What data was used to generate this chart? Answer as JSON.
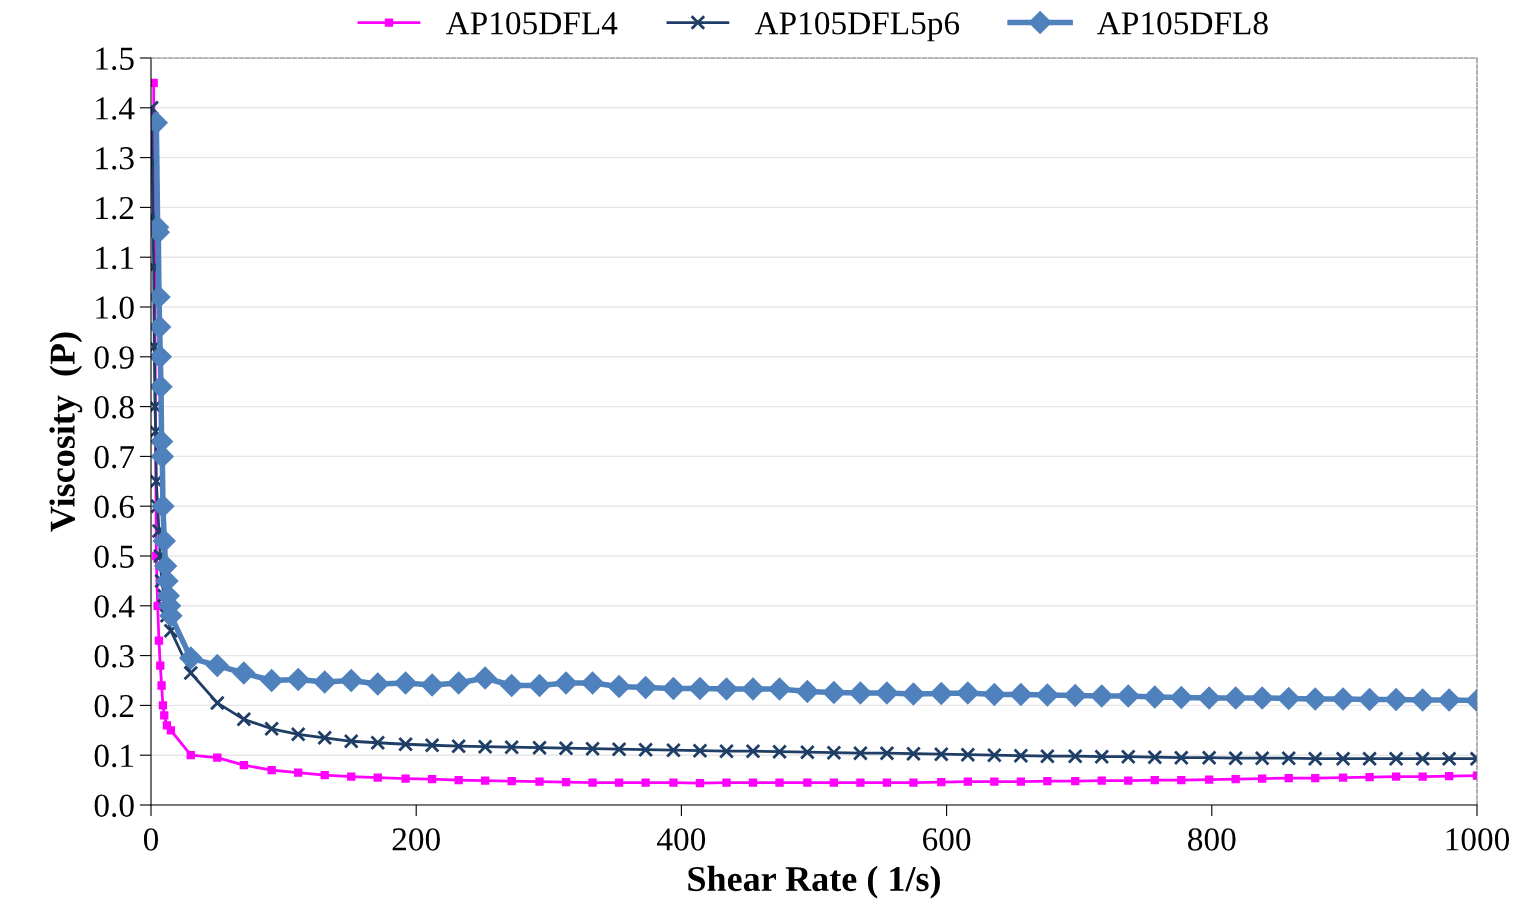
{
  "chart_data": {
    "type": "line",
    "xlabel": "Shear Rate ( 1/s)",
    "ylabel": "Viscosity  (P)",
    "xlim": [
      0,
      1000
    ],
    "xticks": [
      0,
      200,
      400,
      600,
      800,
      1000
    ],
    "ylim": [
      0,
      1.5
    ],
    "yticks": [
      {
        "value": 0,
        "label": "0.0"
      },
      0.1,
      0.2,
      0.3,
      0.4,
      0.5,
      0.6,
      0.7,
      0.8,
      0.9,
      {
        "value": 1,
        "label": "1.0"
      },
      1.1,
      1.2,
      1.3,
      1.4,
      1.5
    ],
    "grid": "y",
    "legend": "top",
    "series": [
      {
        "name": "AP105DFL4",
        "color": "#ff00ff",
        "marker": "square",
        "x": [
          2,
          4,
          5,
          6,
          7,
          8,
          9,
          10,
          12,
          15,
          30,
          50,
          70,
          91,
          111,
          131,
          151,
          171,
          192,
          212,
          232,
          252,
          272,
          293,
          313,
          333,
          353,
          373,
          394,
          414,
          434,
          454,
          474,
          495,
          515,
          535,
          555,
          575,
          596,
          616,
          636,
          656,
          676,
          697,
          717,
          737,
          757,
          777,
          798,
          818,
          838,
          858,
          878,
          899,
          919,
          939,
          959,
          979,
          1000
        ],
        "values": [
          1.45,
          0.5,
          0.4,
          0.33,
          0.28,
          0.24,
          0.2,
          0.18,
          0.16,
          0.15,
          0.1,
          0.095,
          0.08,
          0.07,
          0.065,
          0.06,
          0.057,
          0.055,
          0.053,
          0.052,
          0.05,
          0.049,
          0.048,
          0.047,
          0.046,
          0.045,
          0.045,
          0.045,
          0.045,
          0.044,
          0.045,
          0.045,
          0.045,
          0.045,
          0.045,
          0.045,
          0.045,
          0.045,
          0.046,
          0.047,
          0.047,
          0.047,
          0.048,
          0.048,
          0.049,
          0.049,
          0.05,
          0.05,
          0.051,
          0.052,
          0.053,
          0.054,
          0.054,
          0.055,
          0.056,
          0.057,
          0.057,
          0.058,
          0.059
        ]
      },
      {
        "name": "AP105DFL5p6",
        "color": "#1f3e66",
        "marker": "cross",
        "x": [
          0.5,
          1,
          1.5,
          2,
          2.5,
          3,
          3.5,
          4,
          5,
          6,
          7,
          8,
          10,
          12,
          15,
          30,
          50,
          70,
          91,
          111,
          131,
          151,
          171,
          192,
          212,
          232,
          252,
          272,
          293,
          313,
          333,
          353,
          373,
          394,
          414,
          434,
          454,
          474,
          495,
          515,
          535,
          555,
          575,
          596,
          616,
          636,
          656,
          676,
          697,
          717,
          737,
          757,
          777,
          798,
          818,
          838,
          858,
          878,
          899,
          919,
          939,
          959,
          979,
          1000
        ],
        "values": [
          1.4,
          1.29,
          1.18,
          1.08,
          0.92,
          0.8,
          0.75,
          0.65,
          0.6,
          0.55,
          0.5,
          0.45,
          0.42,
          0.38,
          0.35,
          0.265,
          0.205,
          0.172,
          0.153,
          0.142,
          0.135,
          0.128,
          0.125,
          0.122,
          0.12,
          0.118,
          0.117,
          0.116,
          0.115,
          0.114,
          0.113,
          0.112,
          0.111,
          0.11,
          0.109,
          0.108,
          0.108,
          0.107,
          0.106,
          0.105,
          0.104,
          0.104,
          0.103,
          0.102,
          0.101,
          0.1,
          0.099,
          0.098,
          0.098,
          0.097,
          0.097,
          0.096,
          0.095,
          0.095,
          0.094,
          0.094,
          0.094,
          0.093,
          0.093,
          0.093,
          0.093,
          0.093,
          0.093,
          0.093
        ]
      },
      {
        "name": "AP105DFL8",
        "color": "#4f81bd",
        "marker": "diamond",
        "x": [
          4,
          5,
          5.5,
          6,
          6.5,
          7,
          7.5,
          8,
          8.5,
          9,
          10,
          11,
          12,
          13,
          14,
          15,
          30,
          50,
          70,
          91,
          111,
          131,
          151,
          171,
          192,
          212,
          232,
          252,
          272,
          293,
          313,
          333,
          353,
          373,
          394,
          414,
          434,
          454,
          474,
          495,
          515,
          535,
          555,
          575,
          596,
          616,
          636,
          656,
          676,
          697,
          717,
          737,
          757,
          777,
          798,
          818,
          838,
          858,
          878,
          899,
          919,
          939,
          959,
          979,
          1000
        ],
        "values": [
          1.37,
          1.16,
          1.15,
          1.02,
          0.96,
          0.9,
          0.84,
          0.73,
          0.7,
          0.6,
          0.53,
          0.48,
          0.45,
          0.42,
          0.4,
          0.38,
          0.295,
          0.28,
          0.265,
          0.25,
          0.252,
          0.247,
          0.25,
          0.243,
          0.245,
          0.241,
          0.245,
          0.255,
          0.24,
          0.24,
          0.245,
          0.245,
          0.238,
          0.236,
          0.234,
          0.234,
          0.233,
          0.233,
          0.233,
          0.228,
          0.226,
          0.225,
          0.225,
          0.223,
          0.224,
          0.225,
          0.222,
          0.222,
          0.221,
          0.22,
          0.219,
          0.219,
          0.217,
          0.216,
          0.215,
          0.215,
          0.215,
          0.214,
          0.213,
          0.213,
          0.212,
          0.212,
          0.211,
          0.211,
          0.21
        ]
      }
    ]
  }
}
